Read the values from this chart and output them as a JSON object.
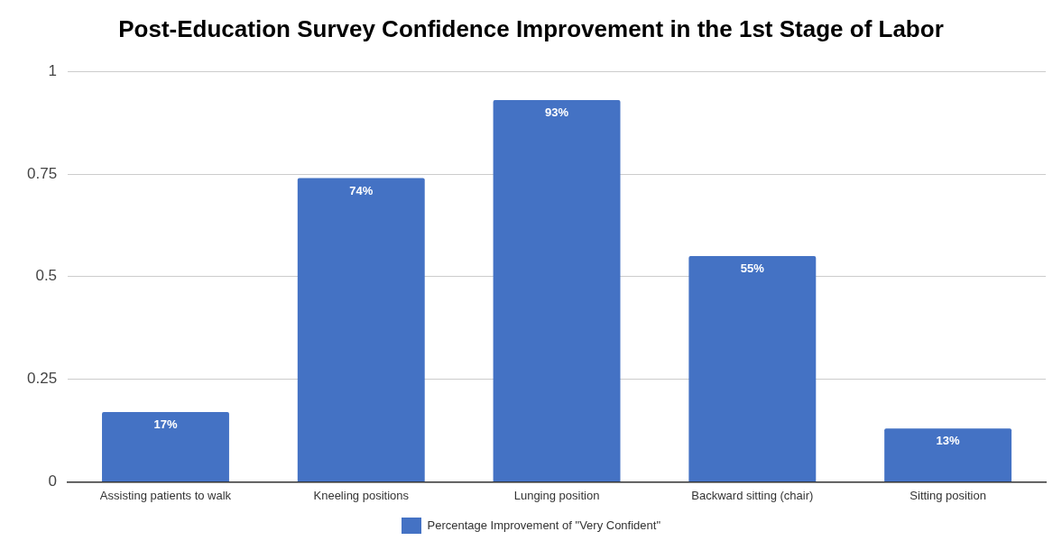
{
  "chart_data": {
    "type": "bar",
    "title": "Post-Education Survey Confidence Improvement in the 1st Stage of Labor",
    "categories": [
      "Assisting patients to walk",
      "Kneeling positions",
      "Lunging position",
      "Backward sitting (chair)",
      "Sitting position"
    ],
    "series": [
      {
        "name": "Percentage Improvement of \"Very Confident\"",
        "color": "#4472c4",
        "values": [
          0.17,
          0.74,
          0.93,
          0.55,
          0.13
        ],
        "value_labels": [
          "17%",
          "74%",
          "93%",
          "55%",
          "13%"
        ]
      }
    ],
    "ylim": [
      0,
      1
    ],
    "yticks": [
      0,
      0.25,
      0.5,
      0.75,
      1
    ],
    "grid": "y",
    "legend": "bottom"
  }
}
